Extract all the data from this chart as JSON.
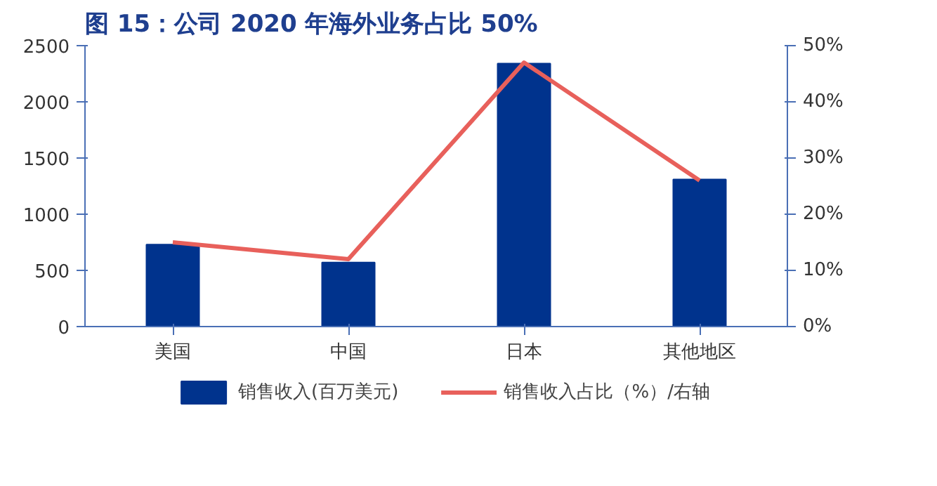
{
  "chart_data": {
    "type": "bar",
    "title": "图 15：公司 2020 年海外业务占比 50%",
    "categories": [
      "美国",
      "中国",
      "日本",
      "其他地区"
    ],
    "series": [
      {
        "name": "销售收入(百万美元)",
        "color": "#00338d",
        "values": [
          730,
          570,
          2340,
          1310
        ]
      },
      {
        "name": "销售收入占比（%）/右轴",
        "type": "line",
        "axis": "y2",
        "color": "#e8605b",
        "values": [
          15,
          12,
          47,
          26
        ]
      }
    ],
    "ylim": [
      0,
      2500
    ],
    "yticks": [
      0,
      500,
      1000,
      1500,
      2000,
      2500
    ],
    "y2lim": [
      0,
      50
    ],
    "y2ticks": [
      {
        "value": 0,
        "label": "0%"
      },
      {
        "value": 10,
        "label": "10%"
      },
      {
        "value": 20,
        "label": "20%"
      },
      {
        "value": 30,
        "label": "30%"
      },
      {
        "value": 40,
        "label": "40%"
      },
      {
        "value": 50,
        "label": "50%"
      }
    ],
    "grid": false,
    "legend": "bottom",
    "marker": "none",
    "line_style": "solid"
  }
}
